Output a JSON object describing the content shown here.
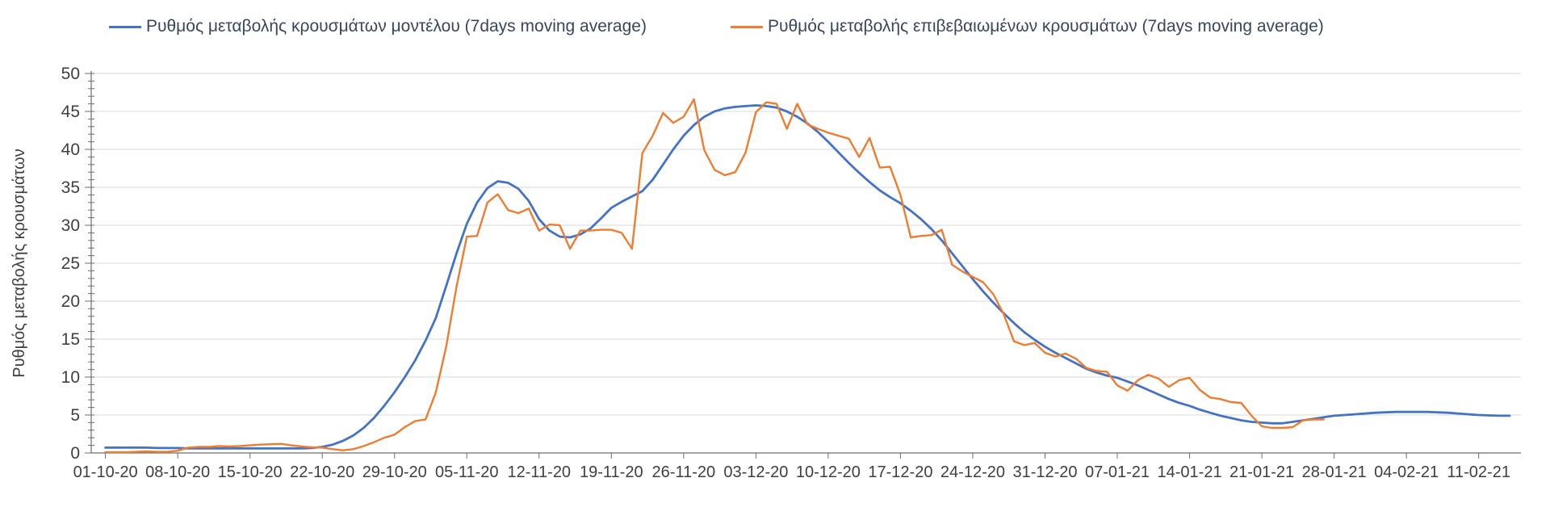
{
  "legend": [
    {
      "label": "Ρυθμός μεταβολής κρουσμάτων μοντέλου (7days moving average)",
      "color": "#4472C4"
    },
    {
      "label": "Ρυθμός μεταβολής επιβεβαιωμένων κρουσμάτων (7days moving average)",
      "color": "#ED7D31"
    }
  ],
  "y_axis": {
    "title": "Ρυθμός μεταβολής κρουσμάτων",
    "min": 0,
    "max": 50,
    "major_step": 5,
    "minor_step": 1
  },
  "x_axis": {
    "tick_interval_days": 7,
    "tick_labels": [
      "01-10-20",
      "08-10-20",
      "15-10-20",
      "22-10-20",
      "29-10-20",
      "05-11-20",
      "12-11-20",
      "19-11-20",
      "26-11-20",
      "03-12-20",
      "10-12-20",
      "17-12-20",
      "24-12-20",
      "31-12-20",
      "07-01-21",
      "14-01-21",
      "21-01-21",
      "28-01-21",
      "04-02-21",
      "11-02-21"
    ]
  },
  "colors": {
    "gridline": "#d9d9d9",
    "axis": "#6e6e6e",
    "tick_text": "#3f3f3f",
    "background": "#ffffff"
  },
  "chart_data": {
    "type": "line",
    "title": "",
    "xlabel": "",
    "ylabel": "Ρυθμός μεταβολής κρουσμάτων",
    "ylim": [
      0,
      50
    ],
    "grid": "horizontal",
    "legend_position": "top",
    "x_unit": "daily points, day 0 = 01-10-20",
    "series": [
      {
        "name": "Ρυθμός μεταβολής κρουσμάτων μοντέλου (7days moving average)",
        "color": "#4472C4",
        "values": [
          0.7,
          0.7,
          0.7,
          0.7,
          0.7,
          0.65,
          0.65,
          0.65,
          0.6,
          0.6,
          0.6,
          0.6,
          0.6,
          0.6,
          0.6,
          0.6,
          0.6,
          0.6,
          0.6,
          0.6,
          0.65,
          0.8,
          1.1,
          1.6,
          2.3,
          3.3,
          4.6,
          6.2,
          8.0,
          10.0,
          12.2,
          14.8,
          17.8,
          22.0,
          26.3,
          30.2,
          33.0,
          34.9,
          35.8,
          35.6,
          34.8,
          33.2,
          30.8,
          29.3,
          28.5,
          28.4,
          28.8,
          29.6,
          30.9,
          32.3,
          33.1,
          33.8,
          34.5,
          36.0,
          38.0,
          40.0,
          41.8,
          43.2,
          44.3,
          45.0,
          45.4,
          45.6,
          45.7,
          45.8,
          45.7,
          45.5,
          45.0,
          44.3,
          43.4,
          42.3,
          41.0,
          39.6,
          38.2,
          36.9,
          35.7,
          34.6,
          33.7,
          32.9,
          31.9,
          30.8,
          29.5,
          28.0,
          26.3,
          24.6,
          22.9,
          21.3,
          19.8,
          18.4,
          17.1,
          15.9,
          14.9,
          14.0,
          13.2,
          12.5,
          11.8,
          11.1,
          10.6,
          10.2,
          9.9,
          9.4,
          8.9,
          8.3,
          7.7,
          7.1,
          6.6,
          6.2,
          5.7,
          5.3,
          4.9,
          4.6,
          4.3,
          4.1,
          4.0,
          3.9,
          3.9,
          4.1,
          4.3,
          4.5,
          4.7,
          4.9,
          5.0,
          5.1,
          5.2,
          5.3,
          5.35,
          5.4,
          5.4,
          5.4,
          5.4,
          5.35,
          5.3,
          5.2,
          5.1,
          5.0,
          4.95,
          4.9,
          4.9
        ]
      },
      {
        "name": "Ρυθμός μεταβολής επιβεβαιωμένων κρουσμάτων (7days moving average)",
        "color": "#ED7D31",
        "values": [
          0.1,
          0.1,
          0.1,
          0.15,
          0.2,
          0.15,
          0.15,
          0.3,
          0.7,
          0.8,
          0.8,
          0.9,
          0.85,
          0.9,
          1.0,
          1.1,
          1.15,
          1.2,
          1.0,
          0.85,
          0.75,
          0.7,
          0.5,
          0.35,
          0.5,
          0.9,
          1.4,
          2.0,
          2.4,
          3.4,
          4.2,
          4.4,
          8.0,
          14.0,
          21.9,
          28.5,
          28.6,
          33.0,
          34.1,
          32.0,
          31.6,
          32.2,
          29.3,
          30.1,
          30.0,
          26.9,
          29.3,
          29.3,
          29.4,
          29.4,
          29.0,
          26.9,
          39.5,
          41.8,
          44.8,
          43.5,
          44.3,
          46.6,
          39.9,
          37.3,
          36.6,
          37.0,
          39.6,
          44.9,
          46.2,
          46.0,
          42.7,
          46.0,
          43.3,
          42.7,
          42.2,
          41.8,
          41.4,
          39.0,
          41.5,
          37.6,
          37.7,
          34.0,
          28.4,
          28.6,
          28.7,
          29.4,
          24.8,
          23.9,
          23.2,
          22.5,
          20.9,
          18.3,
          14.7,
          14.2,
          14.5,
          13.2,
          12.7,
          13.1,
          12.4,
          11.2,
          10.8,
          10.7,
          8.9,
          8.2,
          9.6,
          10.3,
          9.8,
          8.7,
          9.6,
          9.9,
          8.3,
          7.3,
          7.1,
          6.7,
          6.6,
          4.9,
          3.5,
          3.3,
          3.3,
          3.4,
          4.3,
          4.4,
          4.4
        ]
      }
    ]
  }
}
